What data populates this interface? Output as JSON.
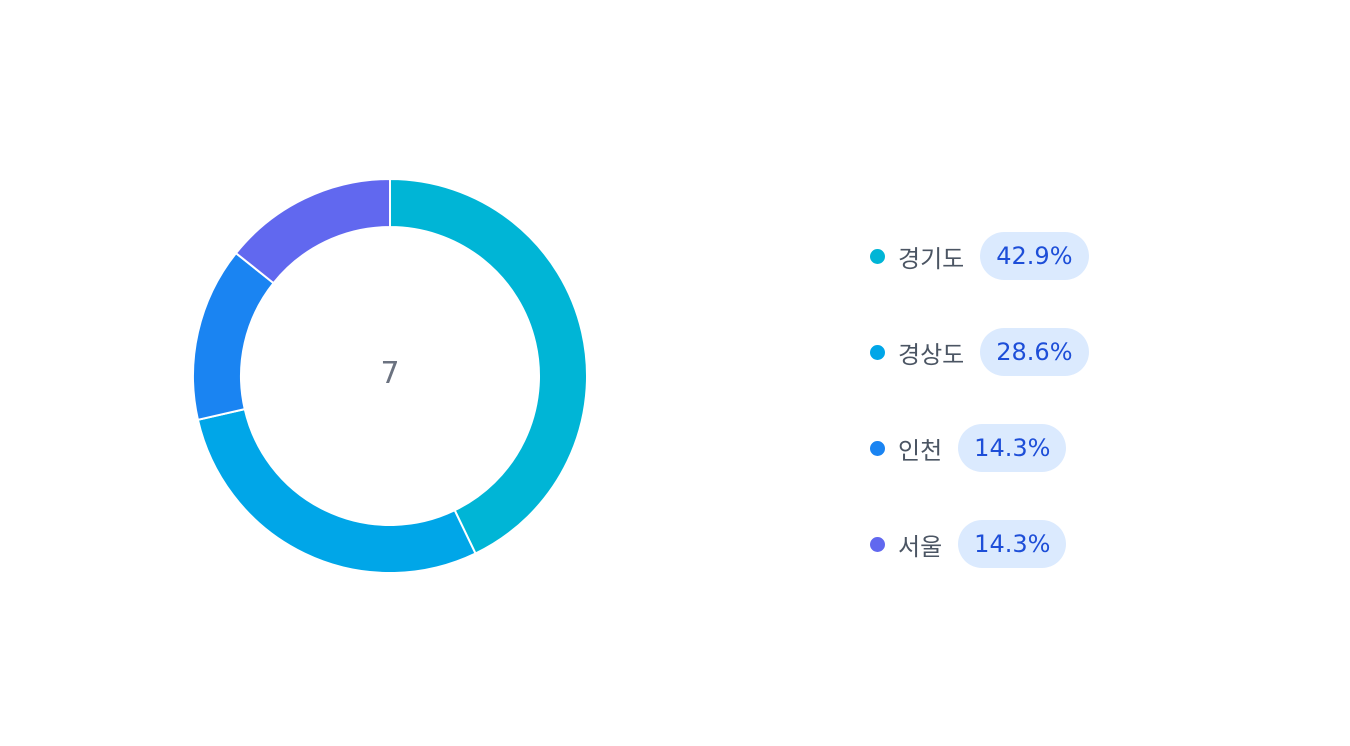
{
  "chart_data": {
    "type": "pie",
    "variant": "donut",
    "center_value": "7",
    "categories": [
      "경기도",
      "경상도",
      "인천",
      "서울"
    ],
    "values": [
      3,
      2,
      1,
      1
    ],
    "percent_labels": [
      "42.9%",
      "28.6%",
      "14.3%",
      "14.3%"
    ],
    "colors": [
      "#00b5d6",
      "#00a6e8",
      "#1a84f2",
      "#6168ef"
    ],
    "legend_position": "right"
  }
}
